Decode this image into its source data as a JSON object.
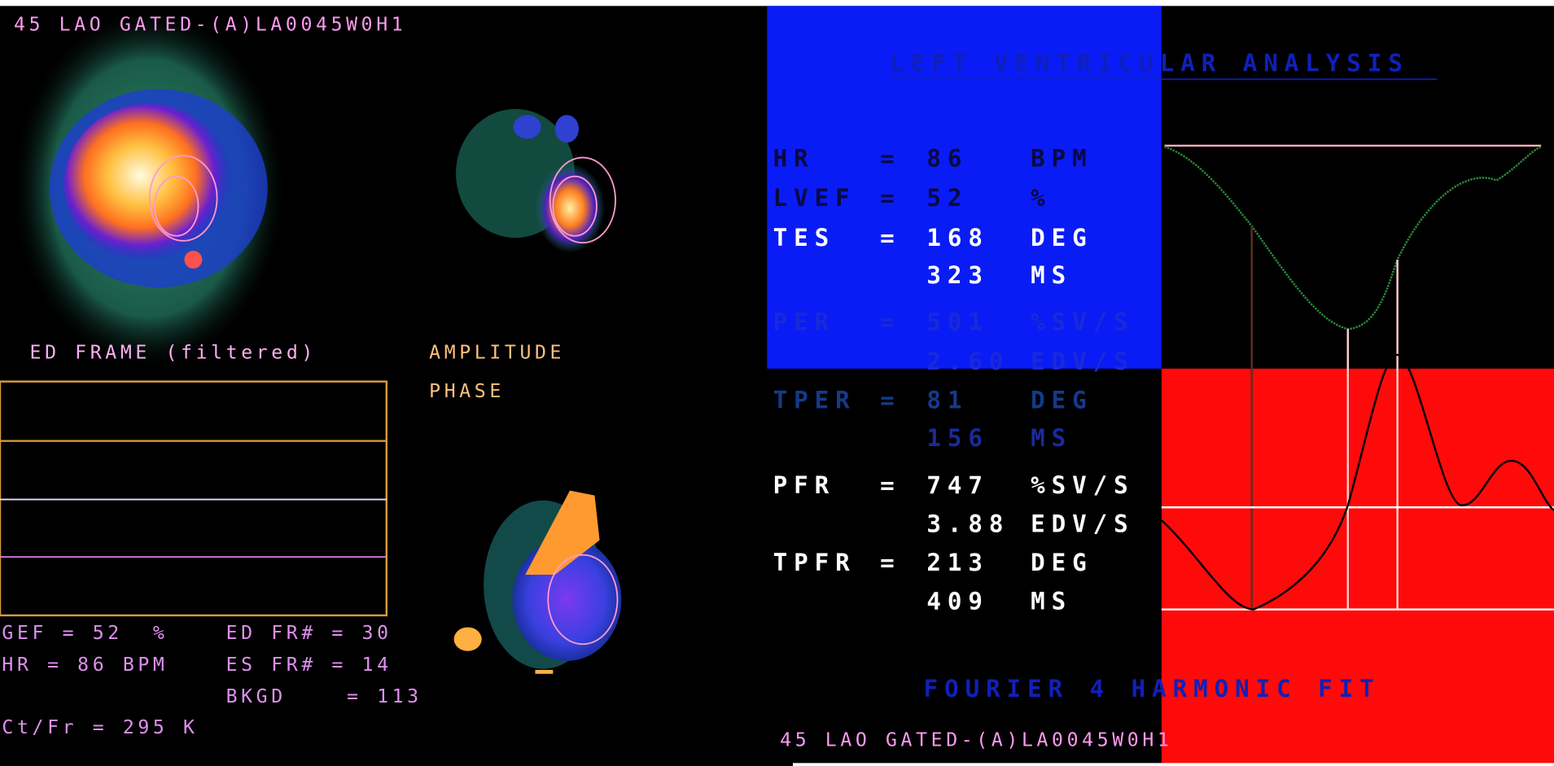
{
  "header": "45 LAO GATED-(A)LA0045W0H1",
  "image_labels": {
    "ed_frame": "ED FRAME (filtered)",
    "amplitude": "AMPLITUDE",
    "phase": "PHASE"
  },
  "stats": {
    "gef": "GEF = 52  %",
    "ed_fr": "ED FR# = 30",
    "hr": "HR = 86 BPM",
    "es_fr": "ES FR# = 14",
    "bkgd": "BKGD    = 113",
    "ct_fr": "Ct/Fr = 295 K"
  },
  "analysis": {
    "title": "LEFT VENTRICULAR ANALYSIS",
    "rows": [
      {
        "label": "HR",
        "sign": "=",
        "value": "86",
        "unit": "BPM"
      },
      {
        "label": "LVEF",
        "sign": "=",
        "value": "52",
        "unit": "%"
      },
      {
        "label": "TES",
        "sign": "=",
        "value": "168",
        "unit": "DEG"
      },
      {
        "value": "323",
        "unit": "MS"
      },
      {
        "label": "PER",
        "sign": "=",
        "value": "501",
        "unit": "%SV/S"
      },
      {
        "value": "2.60",
        "unit": "EDV/S"
      },
      {
        "label": "TPER",
        "sign": "=",
        "value": "81",
        "unit": "DEG"
      },
      {
        "value": "156",
        "unit": "MS"
      },
      {
        "label": "PFR",
        "sign": "=",
        "value": "747",
        "unit": "%SV/S"
      },
      {
        "value": "3.88",
        "unit": "EDV/S"
      },
      {
        "label": "TPFR",
        "sign": "=",
        "value": "213",
        "unit": "DEG"
      },
      {
        "value": "409",
        "unit": "MS"
      }
    ]
  },
  "fit_title": "FOURIER 4 HARMONIC FIT",
  "footer": "45 LAO GATED-(A)LA0045W0H1"
}
